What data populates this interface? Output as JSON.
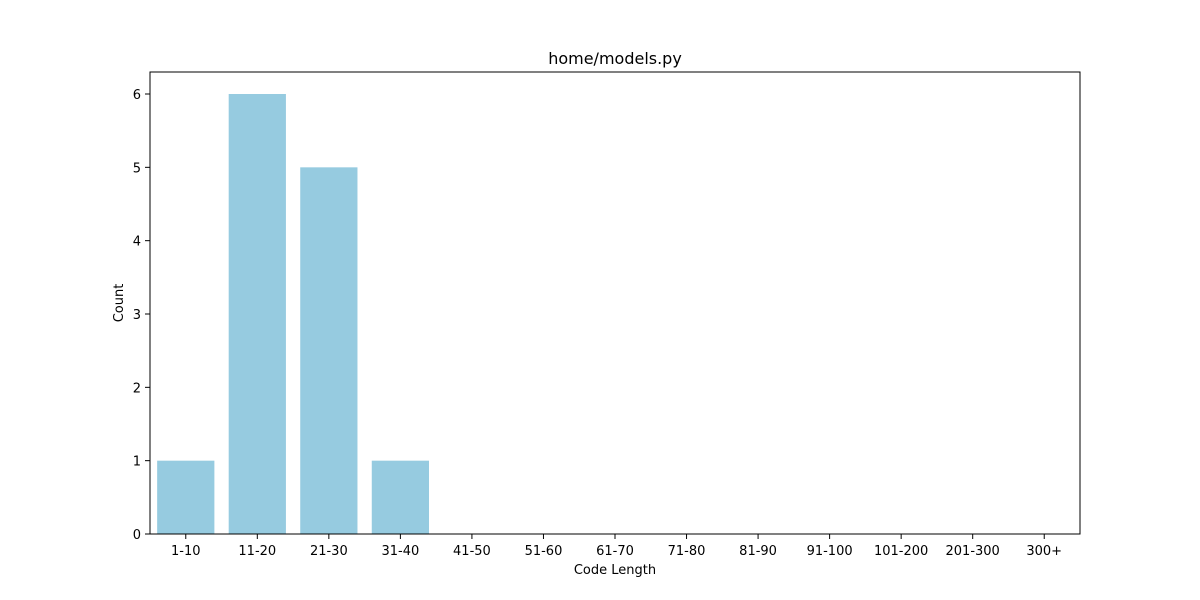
{
  "chart_data": {
    "type": "bar",
    "title": "home/models.py",
    "xlabel": "Code Length",
    "ylabel": "Count",
    "categories": [
      "1-10",
      "11-20",
      "21-30",
      "31-40",
      "41-50",
      "51-60",
      "61-70",
      "71-80",
      "81-90",
      "91-100",
      "101-200",
      "201-300",
      "300+"
    ],
    "values": [
      1,
      6,
      5,
      1,
      0,
      0,
      0,
      0,
      0,
      0,
      0,
      0,
      0
    ],
    "ylim": [
      0,
      6.3
    ],
    "yticks": [
      0,
      1,
      2,
      3,
      4,
      5,
      6
    ],
    "grid": false,
    "legend": "none",
    "bar_color": "#96cbe0"
  }
}
